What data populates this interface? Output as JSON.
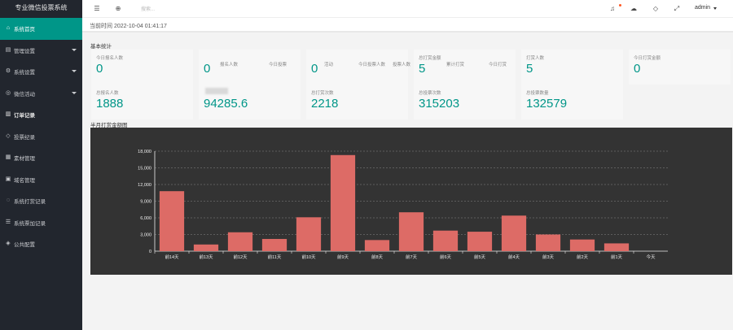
{
  "sidebar": {
    "brand": "专业微信投票系统",
    "items": [
      {
        "label": "系统首页",
        "icon": "home-icon",
        "glyph": "⌂",
        "active": true,
        "has_caret": false
      },
      {
        "label": "管理设置",
        "icon": "settings-icon",
        "glyph": "▤",
        "active": false,
        "has_caret": true
      },
      {
        "label": "系统设置",
        "icon": "gear-icon",
        "glyph": "⚙",
        "active": false,
        "has_caret": true
      },
      {
        "label": "微信活动",
        "icon": "activity-icon",
        "glyph": "◎",
        "active": false,
        "has_caret": true
      },
      {
        "label": "订单记录",
        "icon": "order-icon",
        "glyph": "▥",
        "active": false,
        "has_caret": false
      },
      {
        "label": "投票纪录",
        "icon": "tag-icon",
        "glyph": "◇",
        "active": false,
        "has_caret": false
      },
      {
        "label": "素材管理",
        "icon": "material-icon",
        "glyph": "▦",
        "active": false,
        "has_caret": false
      },
      {
        "label": "域名管理",
        "icon": "domain-icon",
        "glyph": "▣",
        "active": false,
        "has_caret": false
      },
      {
        "label": "系统打赏记录",
        "icon": "reward-icon",
        "glyph": "◌",
        "active": false,
        "has_caret": false
      },
      {
        "label": "系统票加记录",
        "icon": "vote-add-icon",
        "glyph": "☰",
        "active": false,
        "has_caret": false
      },
      {
        "label": "公共配置",
        "icon": "shield-icon",
        "glyph": "◈",
        "active": false,
        "has_caret": false
      }
    ]
  },
  "header": {
    "search_placeholder": "搜索...",
    "user": "admin"
  },
  "timebar": {
    "text": "当前时间 2022-10-04 01:41:17"
  },
  "basic_stats": {
    "title": "基本统计",
    "row1": [
      {
        "label": "今日报名人数",
        "value": "0"
      },
      {
        "label": "",
        "value": "0"
      },
      {
        "label": "",
        "value": "0"
      },
      {
        "label": "总打赏金额",
        "value": "5"
      },
      {
        "label": "打赏人数",
        "value": "5"
      },
      {
        "label": "今日打赏金额",
        "value": "0"
      }
    ],
    "ghost_labels": [
      "报名人数",
      "今日投票",
      "活动",
      "今日投票人数",
      "投票人数",
      "累计打赏",
      "今日打赏"
    ],
    "row2": [
      {
        "label": "总报名人数",
        "value": "1888"
      },
      {
        "label": "",
        "value": "94285.6"
      },
      {
        "label": "总打赏次数",
        "value": "2218"
      },
      {
        "label": "总投票次数",
        "value": "315203"
      },
      {
        "label": "总投票数量",
        "value": "132579"
      }
    ]
  },
  "chart_section": {
    "title": "半月打赏金额图"
  },
  "chart_data": {
    "type": "bar",
    "categories": [
      "前14天",
      "前13天",
      "前12天",
      "前11天",
      "前10天",
      "前9天",
      "前8天",
      "前7天",
      "前6天",
      "前5天",
      "前4天",
      "前3天",
      "前2天",
      "前1天",
      "今天"
    ],
    "values": [
      10800,
      1200,
      3400,
      2200,
      6100,
      17300,
      2000,
      7000,
      3700,
      3500,
      6400,
      3000,
      2100,
      1400,
      0
    ],
    "ylim": [
      0,
      18000
    ],
    "yticks": [
      "0",
      "3,000",
      "6,000",
      "9,000",
      "12,000",
      "15,000",
      "18,000"
    ],
    "grid": true,
    "colors": {
      "bar": "#dd6b66",
      "background": "#333333",
      "axis": "#eeeeee"
    }
  },
  "colors": {
    "accent": "#009688",
    "sidebar_bg": "#22262e"
  }
}
